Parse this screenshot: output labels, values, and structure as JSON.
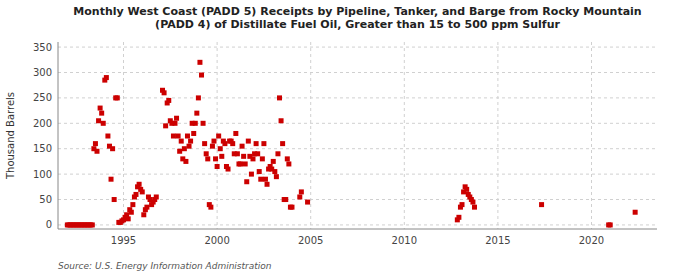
{
  "chart_data": {
    "type": "scatter",
    "title": "Monthly West Coast (PADD 5) Receipts by Pipeline, Tanker, and Barge from Rocky Mountain\n(PADD 4) of Distillate Fuel Oil, Greater than 15 to 500 ppm Sulfur",
    "ylabel": "Thousand Barrels",
    "annotations": [
      "Source: U.S. Energy Information Administration"
    ],
    "color": "#cc0000",
    "marker": "square",
    "grid": true,
    "xlim": [
      1991.5,
      2023.5
    ],
    "ylim": [
      -8,
      360
    ],
    "xticks": [
      1995,
      2000,
      2005,
      2010,
      2015,
      2020
    ],
    "yticks": [
      0,
      50,
      100,
      150,
      200,
      250,
      300,
      350
    ],
    "x": [
      1992.0,
      1992.083,
      1992.167,
      1992.25,
      1992.333,
      1992.417,
      1992.5,
      1992.583,
      1992.667,
      1992.75,
      1992.833,
      1992.917,
      1993.0,
      1993.083,
      1993.167,
      1993.25,
      1993.333,
      1993.417,
      1993.5,
      1993.583,
      1993.667,
      1993.75,
      1993.833,
      1993.917,
      1994.0,
      1994.083,
      1994.167,
      1994.25,
      1994.333,
      1994.417,
      1994.5,
      1994.583,
      1994.667,
      1994.75,
      1994.833,
      1994.917,
      1995.0,
      1995.083,
      1995.167,
      1995.25,
      1995.333,
      1995.417,
      1995.5,
      1995.583,
      1995.667,
      1995.75,
      1995.833,
      1995.917,
      1996.0,
      1996.083,
      1996.167,
      1996.25,
      1996.333,
      1996.417,
      1996.5,
      1996.583,
      1996.667,
      1996.75,
      1997.083,
      1997.167,
      1997.25,
      1997.333,
      1997.417,
      1997.5,
      1997.583,
      1997.667,
      1997.75,
      1997.833,
      1997.917,
      1998.0,
      1998.083,
      1998.167,
      1998.25,
      1998.333,
      1998.417,
      1998.5,
      1998.583,
      1998.667,
      1998.75,
      1998.833,
      1998.917,
      1999.0,
      1999.083,
      1999.167,
      1999.25,
      1999.333,
      1999.417,
      1999.5,
      1999.583,
      1999.667,
      1999.75,
      1999.833,
      1999.917,
      2000.0,
      2000.083,
      2000.167,
      2000.25,
      2000.333,
      2000.417,
      2000.5,
      2000.583,
      2000.667,
      2000.75,
      2000.833,
      2000.917,
      2001.0,
      2001.083,
      2001.167,
      2001.25,
      2001.333,
      2001.417,
      2001.5,
      2001.583,
      2001.667,
      2001.75,
      2001.833,
      2001.917,
      2002.0,
      2002.083,
      2002.167,
      2002.25,
      2002.333,
      2002.417,
      2002.5,
      2002.583,
      2002.667,
      2002.75,
      2002.833,
      2002.917,
      2003.0,
      2003.083,
      2003.167,
      2003.25,
      2003.333,
      2003.417,
      2003.5,
      2003.583,
      2003.667,
      2003.75,
      2003.833,
      2003.917,
      2004.0,
      2004.417,
      2004.5,
      2004.833,
      2012.833,
      2012.917,
      2013.0,
      2013.083,
      2013.167,
      2013.25,
      2013.333,
      2013.417,
      2013.5,
      2013.583,
      2013.667,
      2013.75,
      2017.333,
      2020.917,
      2021.0,
      2022.333
    ],
    "values": [
      0,
      0,
      0,
      0,
      0,
      0,
      0,
      0,
      0,
      0,
      0,
      0,
      0,
      0,
      0,
      0,
      0,
      150,
      160,
      145,
      205,
      230,
      220,
      200,
      285,
      290,
      175,
      155,
      90,
      150,
      50,
      250,
      250,
      5,
      5,
      8,
      10,
      15,
      20,
      12,
      30,
      25,
      40,
      55,
      60,
      75,
      80,
      70,
      65,
      20,
      30,
      35,
      55,
      50,
      40,
      45,
      50,
      55,
      265,
      260,
      195,
      240,
      245,
      205,
      200,
      175,
      200,
      210,
      175,
      145,
      165,
      130,
      150,
      125,
      175,
      155,
      165,
      200,
      180,
      200,
      220,
      250,
      320,
      295,
      200,
      160,
      140,
      130,
      40,
      35,
      155,
      165,
      130,
      115,
      175,
      150,
      135,
      165,
      160,
      115,
      110,
      165,
      165,
      160,
      140,
      180,
      140,
      120,
      120,
      155,
      135,
      120,
      85,
      165,
      135,
      100,
      130,
      140,
      160,
      140,
      105,
      90,
      130,
      160,
      90,
      80,
      110,
      115,
      110,
      125,
      105,
      95,
      140,
      250,
      205,
      160,
      50,
      50,
      130,
      120,
      35,
      35,
      55,
      65,
      45,
      10,
      15,
      35,
      40,
      65,
      75,
      70,
      60,
      55,
      50,
      45,
      35,
      40,
      0,
      0,
      25
    ]
  }
}
